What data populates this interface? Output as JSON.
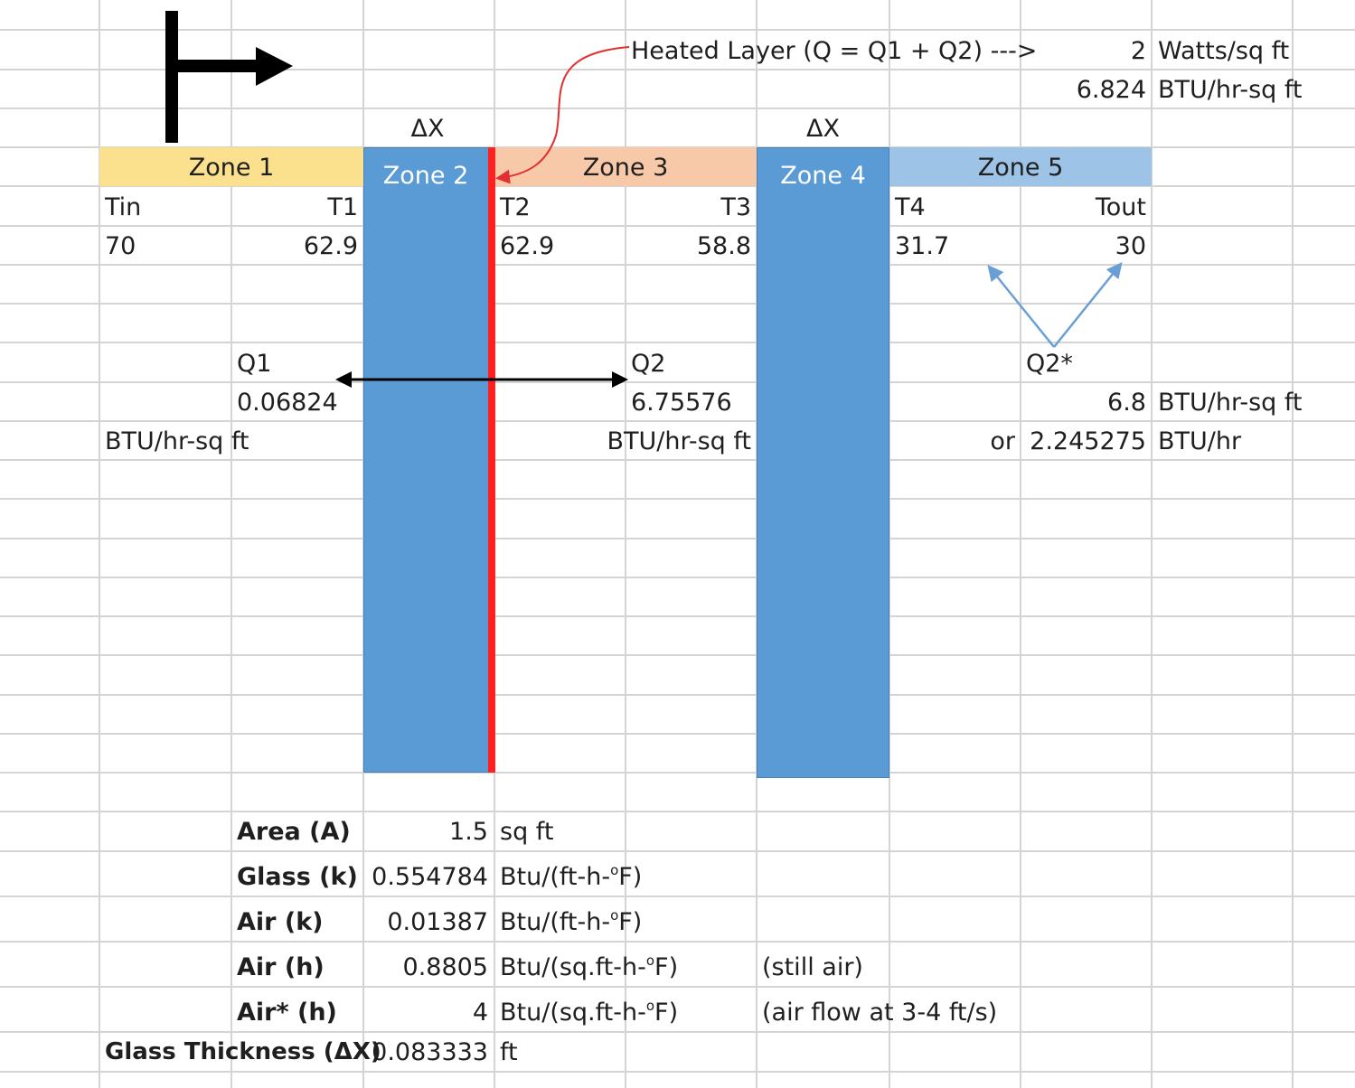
{
  "header": {
    "heated_layer_label": "Heated Layer (Q = Q1 + Q2) --->",
    "power_value": "2",
    "power_unit": "Watts/sq ft",
    "power_btu_value": "6.824",
    "power_btu_unit": "BTU/hr-sq ft",
    "delta_x_left": "ΔX",
    "delta_x_right": "ΔX"
  },
  "zones": [
    {
      "label": "Zone 1",
      "color": "#fbe18e"
    },
    {
      "label": "Zone 2",
      "color": "#5b9bd5"
    },
    {
      "label": "Zone 3",
      "color": "#f8c9a9"
    },
    {
      "label": "Zone 4",
      "color": "#5b9bd5"
    },
    {
      "label": "Zone 5",
      "color": "#9dc3e6"
    }
  ],
  "temps": {
    "tin_label": "Tin",
    "tin_value": "70",
    "t1_label": "T1",
    "t1_value": "62.9",
    "t2_label": "T2",
    "t2_value": "62.9",
    "t3_label": "T3",
    "t3_value": "58.8",
    "t4_label": "T4",
    "t4_value": "31.7",
    "tout_label": "Tout",
    "tout_value": "30"
  },
  "flows": {
    "q1_label": "Q1",
    "q1_value": "0.06824",
    "q1_unit": "BTU/hr-sq ft",
    "q2_label": "Q2",
    "q2_value": "6.75576",
    "q2_unit": "BTU/hr-sq ft",
    "q2s_label": "Q2*",
    "q2s_value": "6.8",
    "q2s_unit": "BTU/hr-sq ft",
    "or_label": "or",
    "q2s_total": "2.245275",
    "q2s_total_unit": "BTU/hr"
  },
  "properties": {
    "area_label": "Area (A)",
    "area_value": "1.5",
    "area_unit": "sq ft",
    "glass_k_label": "Glass (k)",
    "glass_k_value": "0.554784",
    "glass_k_unit_pre": "Btu/(ft-h-",
    "glass_k_unit_post": "F)",
    "air_k_label": "Air (k)",
    "air_k_value": "0.01387",
    "air_k_unit_pre": "Btu/(ft-h-",
    "air_k_unit_post": "F)",
    "air_h_label": "Air (h)",
    "air_h_value": "0.8805",
    "air_h_unit_pre": "Btu/(sq.ft-h-",
    "air_h_unit_post": "F)",
    "air_h_note": "(still air)",
    "airs_h_label": "Air* (h)",
    "airs_h_value": "4",
    "airs_h_unit_pre": "Btu/(sq.ft-h-",
    "airs_h_unit_post": "F)",
    "airs_h_note": "(air flow at 3-4 ft/s)",
    "thick_label": "Glass Thickness (ΔX)",
    "thick_value": "0.083333",
    "thick_unit": "ft",
    "degree": "o"
  },
  "colors": {
    "heated_layer": "#ff2020",
    "annotation_arrow": "#e03030",
    "q2s_arrow": "#6a9fd6",
    "gridline": "#d4d4d4"
  }
}
